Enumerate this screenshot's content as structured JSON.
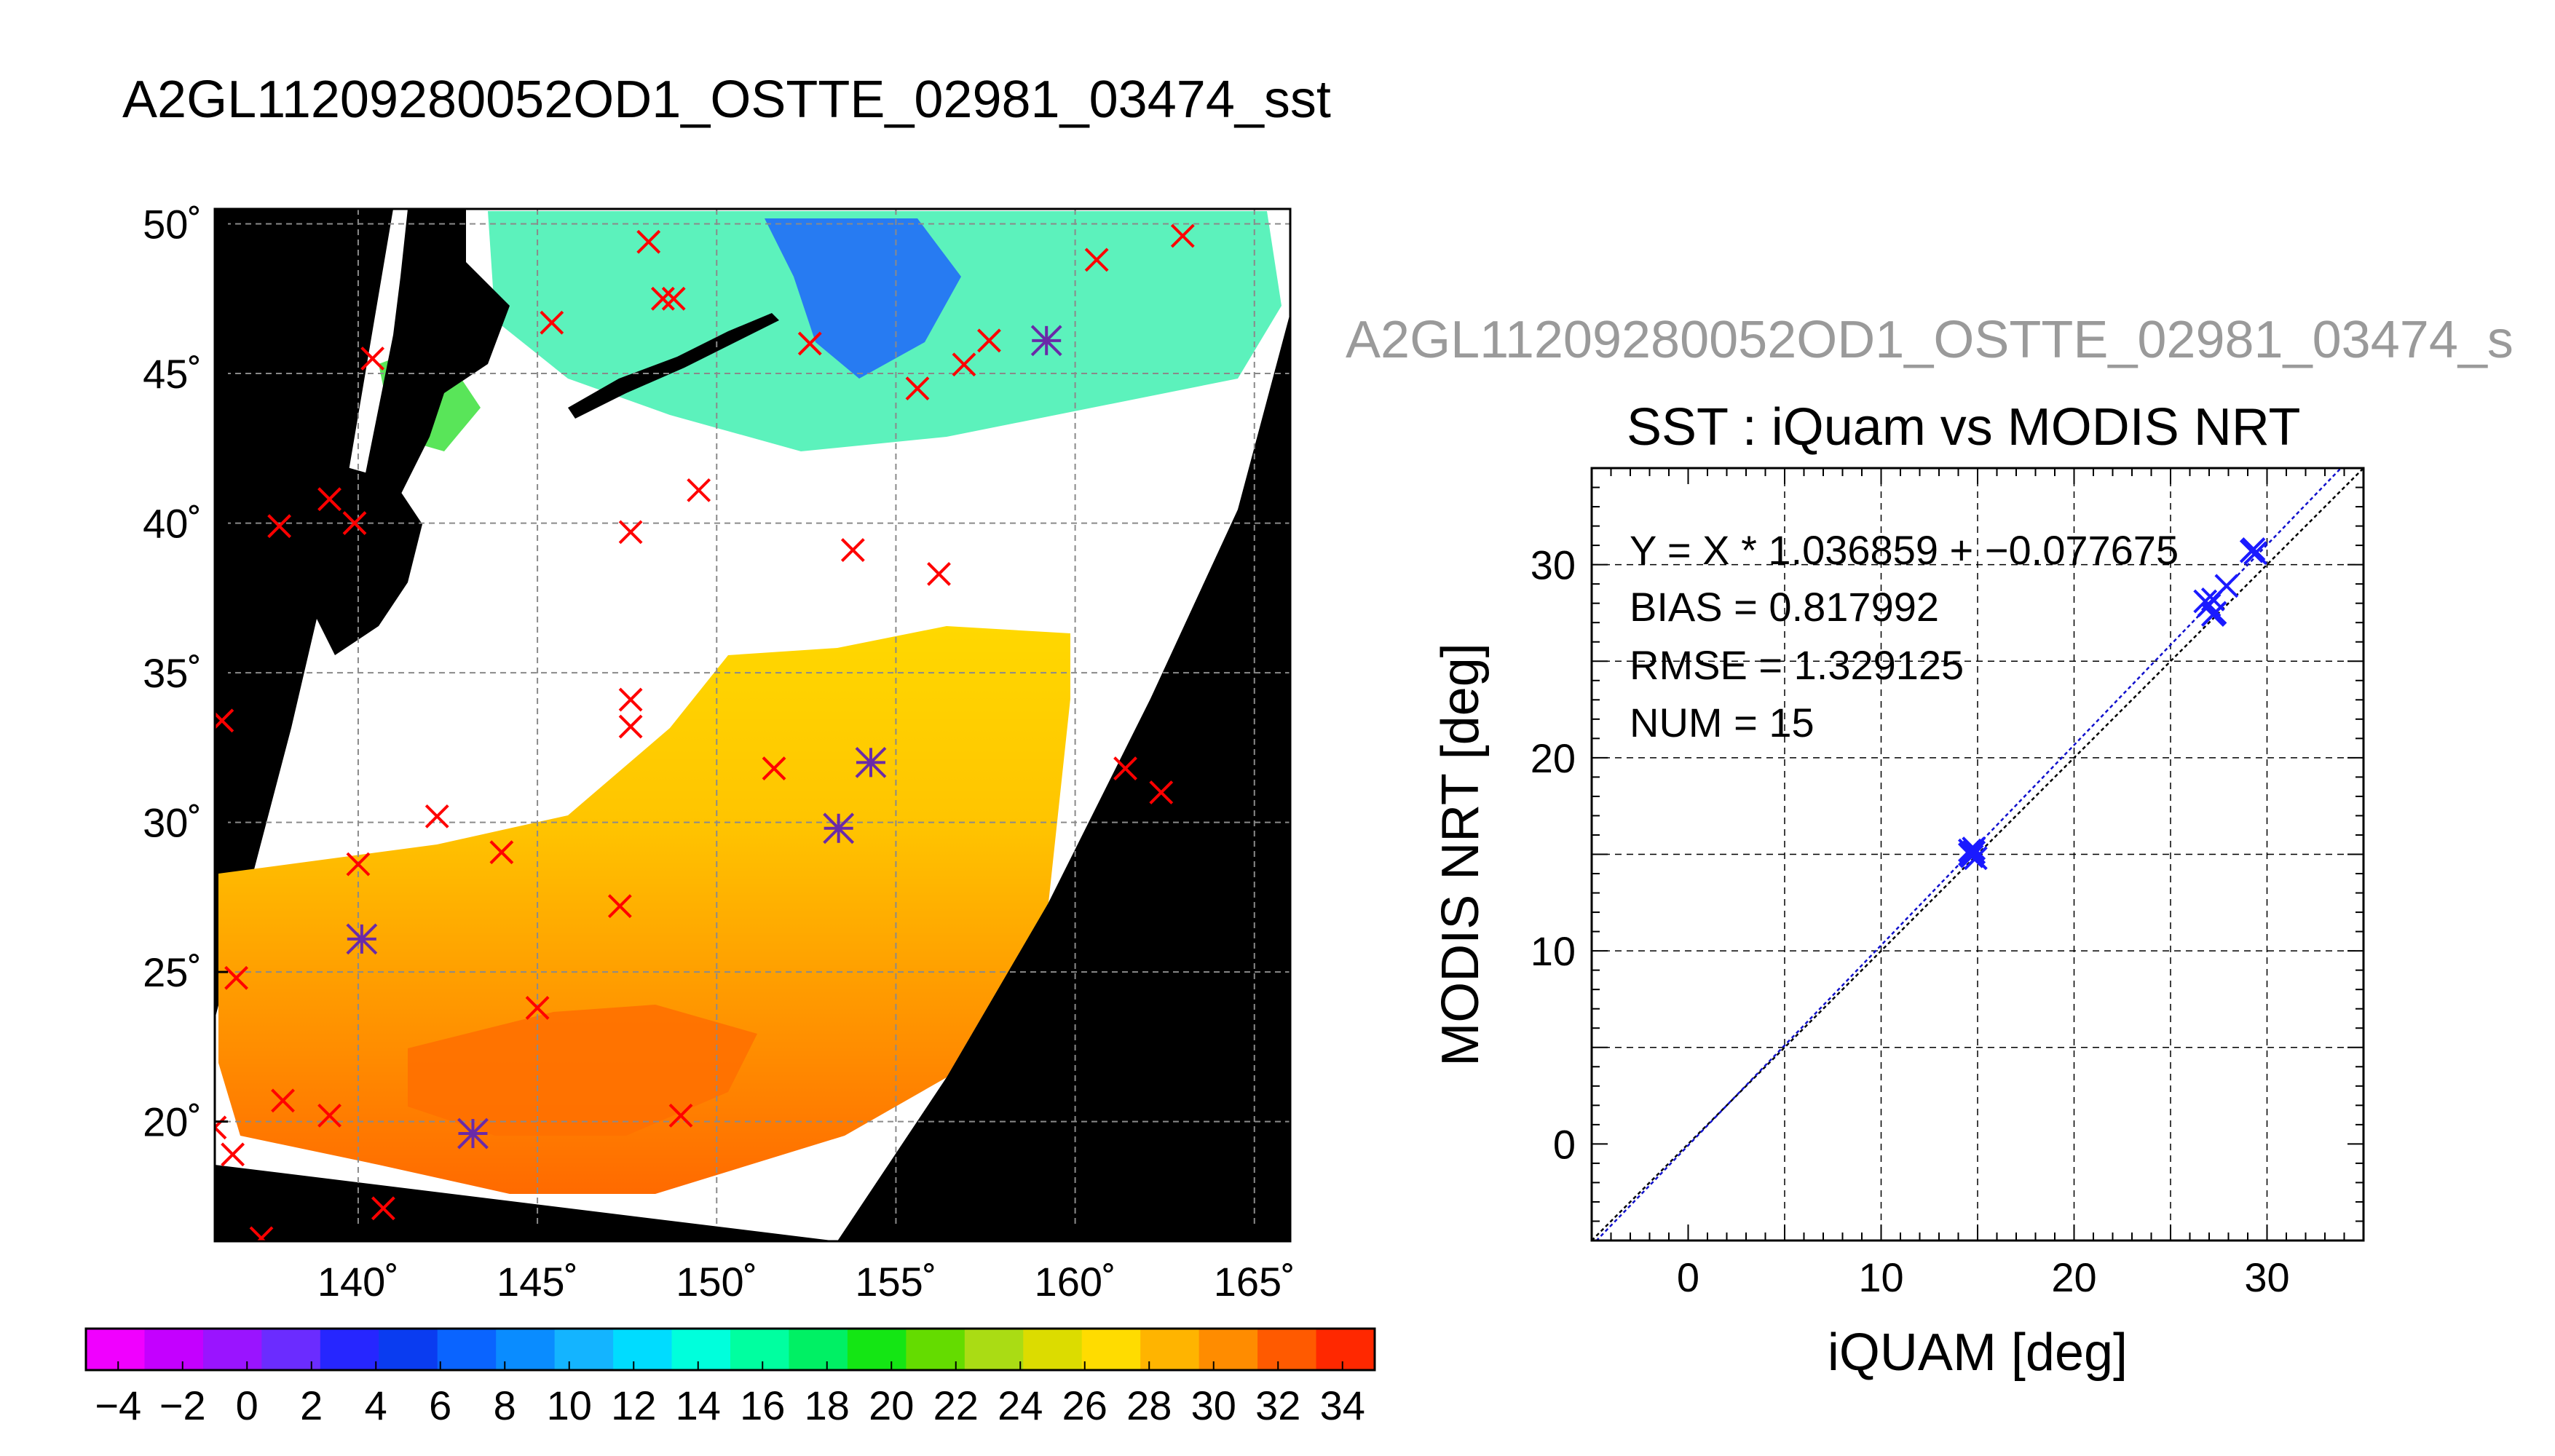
{
  "figure": {
    "title": "A2GL11209280052OD1_OSTTE_02981_03474_sst",
    "side_title": "A2GL11209280052OD1_OSTTE_02981_03474_s"
  },
  "chart_data": [
    {
      "type": "heatmap",
      "title": "A2GL11209280052OD1_OSTTE_02981_03474_sst",
      "description_of_field": "SST swath over NW Pacific, land and no-data masked black",
      "xlim": [
        136,
        166
      ],
      "ylim": [
        16,
        50.5
      ],
      "x_ticks": [
        140,
        145,
        150,
        155,
        160,
        165
      ],
      "x_tick_labels": [
        "140˚",
        "145˚",
        "150˚",
        "155˚",
        "160˚",
        "165˚"
      ],
      "y_ticks": [
        20,
        25,
        30,
        35,
        40,
        45,
        50
      ],
      "y_tick_labels": [
        "20˚",
        "25˚",
        "30˚",
        "35˚",
        "40˚",
        "45˚",
        "50˚"
      ],
      "grid": true,
      "markers_red_x": [
        [
          148.1,
          49.4
        ],
        [
          148.5,
          47.5
        ],
        [
          148.8,
          47.5
        ],
        [
          145.4,
          46.7
        ],
        [
          152.6,
          46.0
        ],
        [
          157.6,
          46.1
        ],
        [
          156.9,
          45.3
        ],
        [
          155.6,
          44.5
        ],
        [
          140.4,
          45.5
        ],
        [
          160.6,
          48.8
        ],
        [
          163.0,
          49.6
        ],
        [
          137.8,
          39.9
        ],
        [
          139.2,
          40.8
        ],
        [
          139.9,
          40.0
        ],
        [
          147.6,
          39.7
        ],
        [
          149.5,
          41.1
        ],
        [
          153.8,
          39.1
        ],
        [
          156.2,
          38.3
        ],
        [
          136.2,
          33.4
        ],
        [
          147.6,
          34.1
        ],
        [
          147.6,
          33.2
        ],
        [
          151.6,
          31.8
        ],
        [
          161.4,
          31.8
        ],
        [
          162.4,
          31.0
        ],
        [
          142.2,
          30.2
        ],
        [
          144.0,
          29.0
        ],
        [
          140.0,
          28.6
        ],
        [
          147.3,
          27.2
        ],
        [
          136.6,
          24.8
        ],
        [
          145.0,
          23.8
        ],
        [
          137.9,
          20.7
        ],
        [
          139.2,
          20.2
        ],
        [
          149.0,
          20.2
        ],
        [
          136.0,
          19.8
        ],
        [
          136.5,
          18.9
        ],
        [
          140.7,
          17.1
        ],
        [
          137.3,
          16.1
        ]
      ],
      "markers_purple_star": [
        [
          159.2,
          46.1
        ],
        [
          154.3,
          32.0
        ],
        [
          153.4,
          29.8
        ],
        [
          140.1,
          26.1
        ],
        [
          143.2,
          19.6
        ]
      ],
      "colorbar": {
        "range": [
          -5,
          35
        ],
        "tick_labels": [
          "−4",
          "−2",
          "0",
          "2",
          "4",
          "6",
          "8",
          "10",
          "12",
          "14",
          "16",
          "18",
          "20",
          "22",
          "24",
          "26",
          "28",
          "30",
          "32",
          "34"
        ],
        "colors": [
          "#f000ff",
          "#c400ff",
          "#9a14ff",
          "#6b2cff",
          "#2626ff",
          "#0a3cf0",
          "#0a64ff",
          "#0a8cff",
          "#14b4ff",
          "#00dcff",
          "#00ffdc",
          "#00ffa0",
          "#00f064",
          "#14e614",
          "#64dc00",
          "#aadc14",
          "#dcdc00",
          "#ffdc00",
          "#ffb400",
          "#ff8c00",
          "#ff5a00",
          "#ff2800"
        ]
      }
    },
    {
      "type": "scatter",
      "title": "SST : iQuam vs MODIS NRT",
      "xlabel": "iQUAM [deg]",
      "ylabel": "MODIS NRT [deg]",
      "xlim": [
        -5,
        35
      ],
      "ylim": [
        -5,
        35
      ],
      "x_ticks": [
        0,
        10,
        20,
        30
      ],
      "y_ticks": [
        0,
        10,
        20,
        30
      ],
      "grid": true,
      "points": [
        {
          "x": 14.6,
          "y": 15.2
        },
        {
          "x": 14.7,
          "y": 14.9
        },
        {
          "x": 14.8,
          "y": 15.1
        },
        {
          "x": 14.9,
          "y": 14.8
        },
        {
          "x": 14.6,
          "y": 15.0
        },
        {
          "x": 14.8,
          "y": 15.3
        },
        {
          "x": 26.8,
          "y": 28.1
        },
        {
          "x": 27.0,
          "y": 27.9
        },
        {
          "x": 27.2,
          "y": 28.2
        },
        {
          "x": 27.3,
          "y": 27.5
        },
        {
          "x": 27.2,
          "y": 27.4
        },
        {
          "x": 27.9,
          "y": 28.9
        },
        {
          "x": 29.2,
          "y": 30.7
        },
        {
          "x": 29.4,
          "y": 30.6
        },
        {
          "x": 29.3,
          "y": 30.8
        }
      ],
      "fit": {
        "slope": 1.036859,
        "intercept": -0.077675
      },
      "stats": {
        "equation": "Y = X * 1.036859 + −0.077675",
        "bias": "BIAS = 0.817992",
        "rmse": "RMSE = 1.329125",
        "num": "NUM = 15"
      }
    }
  ]
}
